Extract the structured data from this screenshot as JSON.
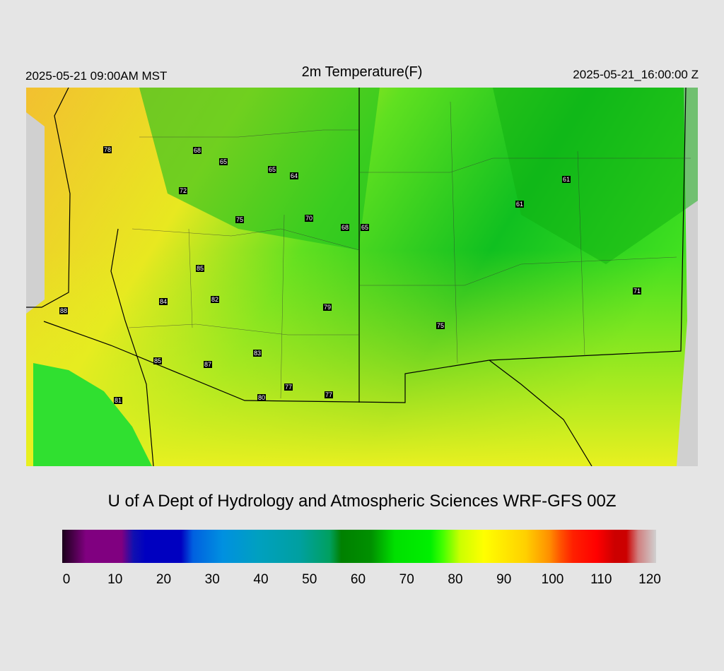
{
  "header": {
    "local_time": "2025-05-21 09:00AM MST",
    "title": "2m Temperature(F)",
    "utc_time": "2025-05-21_16:00:00 Z"
  },
  "stations": [
    78,
    68,
    65,
    65,
    64,
    72,
    75,
    70,
    68,
    65,
    61,
    61,
    85,
    84,
    82,
    88,
    79,
    75,
    71,
    83,
    85,
    87,
    77,
    77,
    80,
    81
  ],
  "footer": {
    "credit": "U of A Dept of Hydrology and Atmospheric Sciences WRF-GFS 00Z"
  },
  "colorbar": {
    "ticks": [
      0,
      10,
      20,
      30,
      40,
      50,
      60,
      70,
      80,
      90,
      100,
      110,
      120
    ]
  }
}
